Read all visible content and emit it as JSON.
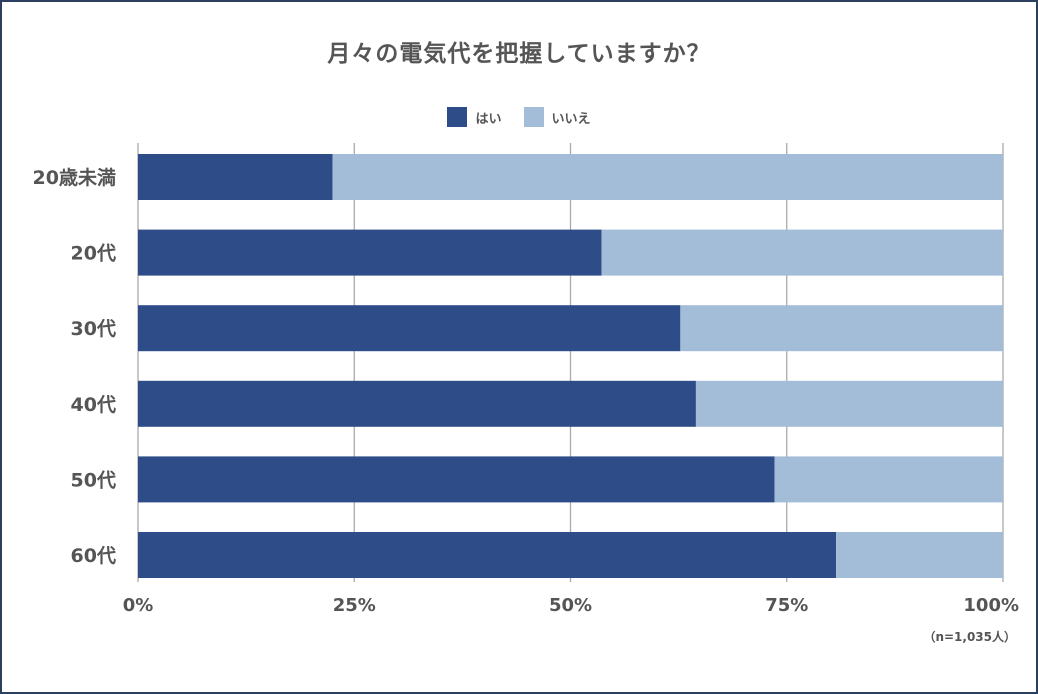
{
  "chart_data": {
    "type": "bar",
    "stacked": true,
    "orientation": "horizontal",
    "title": "月々の電気代を把握していますか？",
    "categories": [
      "20歳未満",
      "20代",
      "30代",
      "40代",
      "50代",
      "60代"
    ],
    "series": [
      {
        "name": "はい",
        "values": [
          22.5,
          53.6,
          62.7,
          64.5,
          73.6,
          80.7
        ],
        "color": "#2e4d88"
      },
      {
        "name": "いいえ",
        "values": [
          77.5,
          46.4,
          37.3,
          35.5,
          26.4,
          19.3
        ],
        "color": "#a3bdd8"
      }
    ],
    "xlim": [
      0,
      100
    ],
    "xticks": [
      "0%",
      "25%",
      "50%",
      "75%",
      "100%"
    ],
    "grid": true,
    "legend_position": "top-center",
    "note": "（n=1,035人）"
  },
  "colors": {
    "frame": "#2d3f5f",
    "grid": "#aaaaaa",
    "text": "#555555"
  }
}
